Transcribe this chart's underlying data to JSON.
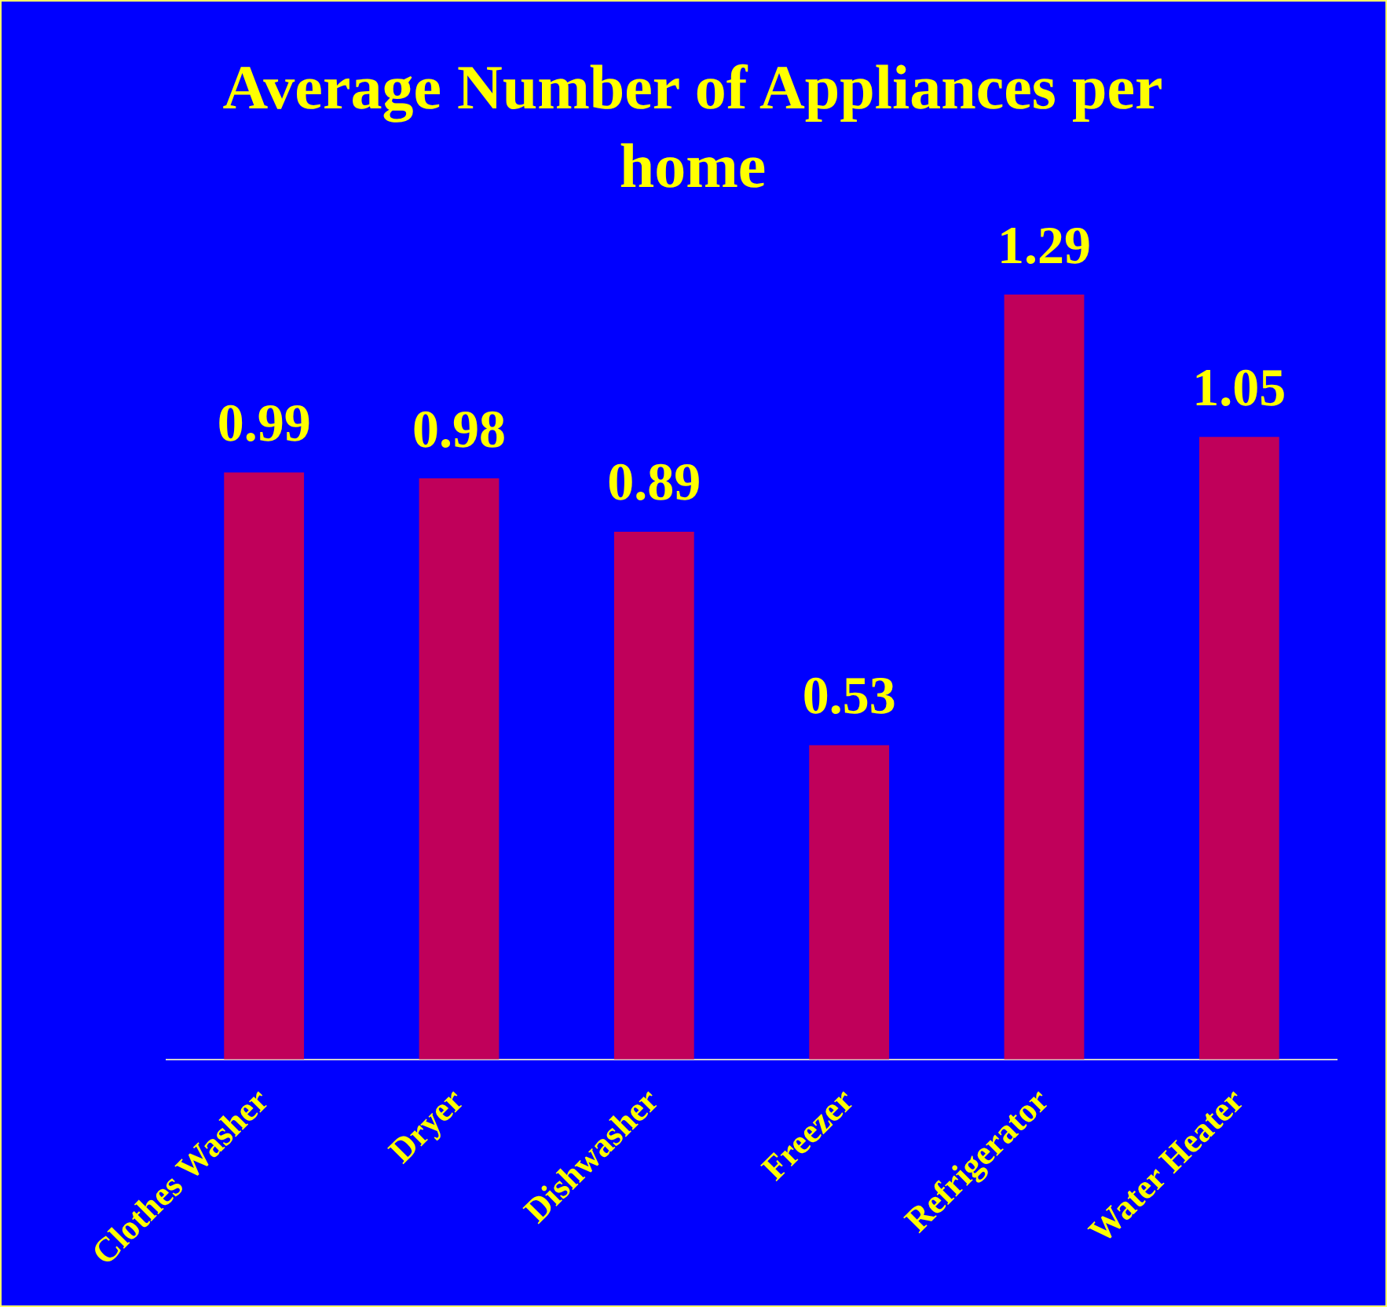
{
  "chart_data": {
    "type": "bar",
    "title": "Average Number of Appliances per home",
    "categories": [
      "Clothes Washer",
      "Dryer",
      "Dishwasher",
      "Freezer",
      "Refrigerator",
      "Water Heater"
    ],
    "values": [
      0.99,
      0.98,
      0.89,
      0.53,
      1.29,
      1.05
    ],
    "color": "#c0005a",
    "data_labels": true,
    "grid": false,
    "legend": false
  }
}
